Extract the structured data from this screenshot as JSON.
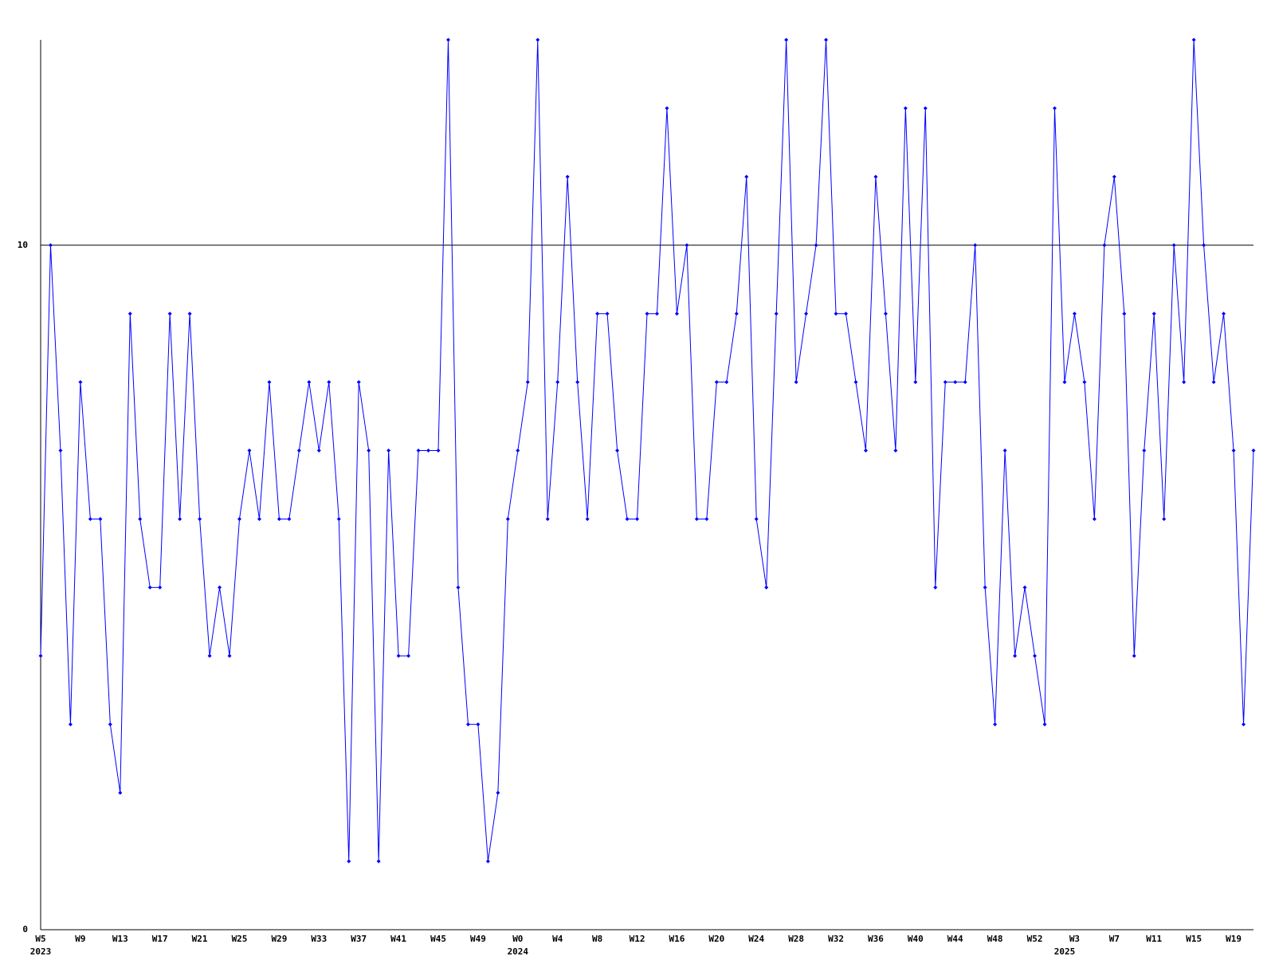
{
  "chart_data": {
    "type": "line",
    "categories": [
      "W5",
      null,
      null,
      null,
      "W9",
      null,
      null,
      null,
      "W13",
      null,
      null,
      null,
      "W17",
      null,
      null,
      null,
      "W21",
      null,
      null,
      null,
      "W25",
      null,
      null,
      null,
      "W29",
      null,
      null,
      null,
      "W33",
      null,
      null,
      null,
      "W37",
      null,
      null,
      null,
      "W41",
      null,
      null,
      null,
      "W45",
      null,
      null,
      null,
      "W49",
      null,
      null,
      null,
      "W0",
      null,
      null,
      null,
      "W4",
      null,
      null,
      null,
      "W8",
      null,
      null,
      null,
      "W12",
      null,
      null,
      null,
      "W16",
      null,
      null,
      null,
      "W20",
      null,
      null,
      null,
      "W24",
      null,
      null,
      null,
      "W28",
      null,
      null,
      null,
      "W32",
      null,
      null,
      null,
      "W36",
      null,
      null,
      null,
      "W40",
      null,
      null,
      null,
      "W44",
      null,
      null,
      null,
      "W48",
      null,
      null,
      null,
      "W52",
      null,
      null,
      null,
      "W3",
      null,
      null,
      null,
      "W7",
      null,
      null,
      null,
      "W11",
      null,
      null,
      null,
      "W15",
      null,
      null,
      null,
      "W19",
      null,
      null
    ],
    "years": [
      "2023",
      null,
      null,
      null,
      null,
      null,
      null,
      null,
      null,
      null,
      null,
      null,
      null,
      null,
      null,
      null,
      null,
      null,
      null,
      null,
      null,
      null,
      null,
      null,
      null,
      null,
      null,
      null,
      null,
      null,
      null,
      null,
      null,
      null,
      null,
      null,
      null,
      null,
      null,
      null,
      null,
      null,
      null,
      null,
      null,
      null,
      null,
      null,
      "2024",
      null,
      null,
      null,
      null,
      null,
      null,
      null,
      null,
      null,
      null,
      null,
      null,
      null,
      null,
      null,
      null,
      null,
      null,
      null,
      null,
      null,
      null,
      null,
      null,
      null,
      null,
      null,
      null,
      null,
      null,
      null,
      null,
      null,
      null,
      null,
      null,
      null,
      null,
      null,
      null,
      null,
      null,
      null,
      null,
      null,
      null,
      null,
      null,
      null,
      null,
      null,
      null,
      null,
      null,
      "2025",
      null,
      null,
      null,
      null,
      null,
      null,
      null,
      null,
      null,
      null,
      null,
      null,
      null,
      null,
      null,
      null,
      null,
      null,
      null,
      null,
      null
    ],
    "values": [
      4,
      10,
      7,
      3,
      8,
      6,
      6,
      3,
      2,
      9,
      6,
      5,
      5,
      9,
      6,
      9,
      6,
      4,
      5,
      4,
      6,
      7,
      6,
      8,
      6,
      6,
      7,
      8,
      7,
      8,
      6,
      1,
      8,
      7,
      1,
      7,
      4,
      4,
      7,
      7,
      7,
      13,
      5,
      3,
      3,
      1,
      2,
      6,
      7,
      8,
      13,
      6,
      8,
      11,
      8,
      6,
      9,
      9,
      7,
      6,
      6,
      9,
      9,
      12,
      9,
      10,
      6,
      6,
      8,
      8,
      9,
      11,
      6,
      5,
      9,
      13,
      8,
      9,
      10,
      13,
      9,
      9,
      8,
      7,
      11,
      9,
      7,
      12,
      8,
      12,
      5,
      8,
      8,
      8,
      10,
      5,
      3,
      7,
      4,
      5,
      4,
      3,
      12,
      8,
      9,
      8,
      6,
      10,
      11,
      9,
      4,
      7,
      9,
      6,
      10,
      8,
      13,
      10,
      8,
      9,
      7,
      3,
      7
    ],
    "color": "#0000ff",
    "ylim": [
      0,
      13
    ],
    "yticks": [
      0,
      10
    ],
    "grid": true
  }
}
